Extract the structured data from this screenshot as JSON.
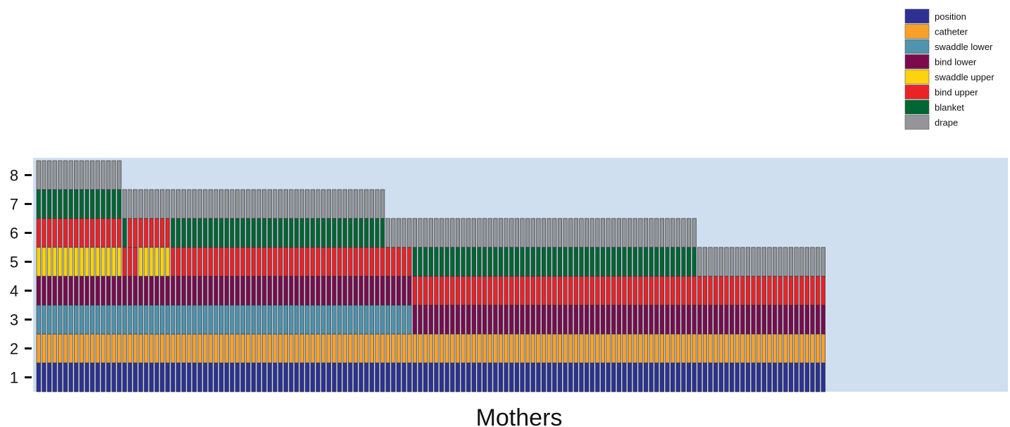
{
  "chart_data": {
    "type": "bar",
    "subtype": "stacked-unit-tiles",
    "xlabel": "Mothers",
    "ylabel": "",
    "y_ticks": [
      "1",
      "2",
      "3",
      "4",
      "5",
      "6",
      "7",
      "8"
    ],
    "ylim": [
      0.5,
      8.5
    ],
    "background": "#cfdff0",
    "legend_position": "top-right",
    "steps": [
      {
        "name": "position",
        "color": "#2e3192"
      },
      {
        "name": "catheter",
        "color": "#f7a12b"
      },
      {
        "name": "swaddle lower",
        "color": "#4f93ad"
      },
      {
        "name": "bind lower",
        "color": "#7b0b4c"
      },
      {
        "name": "swaddle upper",
        "color": "#fdd20e"
      },
      {
        "name": "bind upper",
        "color": "#ec2227"
      },
      {
        "name": "blanket",
        "color": "#006633"
      },
      {
        "name": "drape",
        "color": "#939598"
      }
    ],
    "groups": [
      {
        "count": 16,
        "sequence": [
          "position",
          "catheter",
          "swaddle lower",
          "bind lower",
          "swaddle upper",
          "bind upper",
          "blanket",
          "drape"
        ]
      },
      {
        "count": 1,
        "sequence": [
          "position",
          "catheter",
          "swaddle lower",
          "bind lower",
          "bind upper",
          "blanket",
          "drape"
        ]
      },
      {
        "count": 2,
        "sequence": [
          "position",
          "catheter",
          "swaddle lower",
          "bind lower",
          "bind upper",
          "bind upper",
          "drape"
        ]
      },
      {
        "count": 6,
        "sequence": [
          "position",
          "catheter",
          "swaddle lower",
          "bind lower",
          "swaddle upper",
          "bind upper",
          "drape"
        ]
      },
      {
        "count": 40,
        "sequence": [
          "position",
          "catheter",
          "swaddle lower",
          "bind lower",
          "bind upper",
          "blanket",
          "drape"
        ]
      },
      {
        "count": 5,
        "sequence": [
          "position",
          "catheter",
          "swaddle lower",
          "bind lower",
          "bind upper",
          "drape"
        ]
      },
      {
        "count": 53,
        "sequence": [
          "position",
          "catheter",
          "bind lower",
          "bind upper",
          "blanket",
          "drape"
        ]
      },
      {
        "count": 24,
        "sequence": [
          "position",
          "catheter",
          "bind lower",
          "bind upper",
          "drape"
        ]
      }
    ]
  }
}
